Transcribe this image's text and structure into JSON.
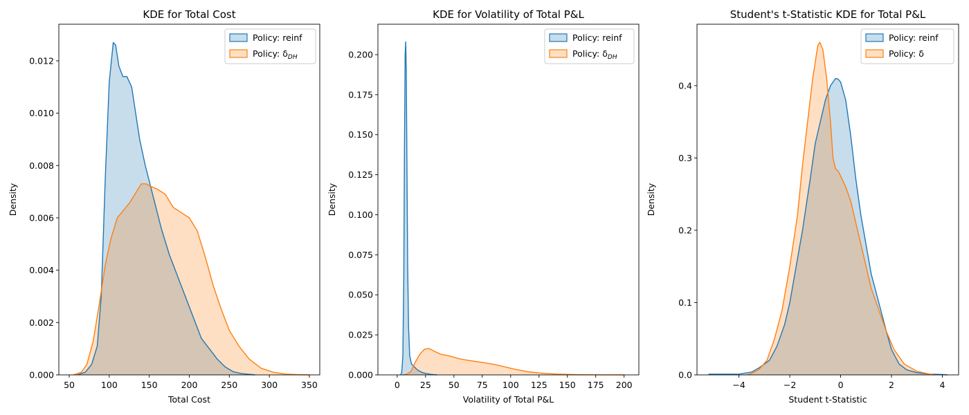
{
  "chart_data": [
    {
      "type": "area",
      "title": "KDE for Total Cost",
      "xlabel": "Total Cost",
      "ylabel": "Density",
      "xlim": [
        37,
        363
      ],
      "ylim": [
        0,
        0.0134
      ],
      "xticks": [
        50,
        100,
        150,
        200,
        250,
        300,
        350
      ],
      "yticks": [
        0.0,
        0.002,
        0.004,
        0.006,
        0.008,
        0.01,
        0.012
      ],
      "ytick_decimals": 3,
      "legend": "top-right",
      "series": [
        {
          "name": "Policy: reinf",
          "color": "#1f77b4",
          "x": [
            60,
            70,
            78,
            85,
            90,
            95,
            100,
            105,
            108,
            112,
            117,
            122,
            128,
            133,
            138,
            145,
            155,
            165,
            175,
            185,
            195,
            205,
            215,
            225,
            235,
            245,
            255,
            265,
            275,
            282
          ],
          "y": [
            0,
            0.0001,
            0.0004,
            0.0011,
            0.003,
            0.0075,
            0.0112,
            0.0127,
            0.0126,
            0.0118,
            0.0114,
            0.0114,
            0.011,
            0.01,
            0.009,
            0.008,
            0.0068,
            0.0056,
            0.0046,
            0.0038,
            0.003,
            0.0022,
            0.0014,
            0.001,
            0.0006,
            0.0003,
            0.00012,
            5e-05,
            2e-05,
            0
          ]
        },
        {
          "name": "Policy: δ",
          "name_sub": "DH",
          "color": "#ff7f0e",
          "x": [
            55,
            65,
            72,
            80,
            88,
            95,
            102,
            110,
            118,
            126,
            134,
            140,
            146,
            152,
            160,
            170,
            180,
            190,
            200,
            210,
            220,
            230,
            240,
            250,
            262,
            275,
            290,
            305,
            320,
            335,
            350
          ],
          "y": [
            0,
            0.0001,
            0.0004,
            0.0013,
            0.0028,
            0.0042,
            0.0052,
            0.006,
            0.0063,
            0.0066,
            0.007,
            0.0073,
            0.0073,
            0.0072,
            0.0071,
            0.0069,
            0.0064,
            0.0062,
            0.006,
            0.0055,
            0.0045,
            0.0034,
            0.0025,
            0.0017,
            0.0011,
            0.0006,
            0.00025,
            0.0001,
            3e-05,
            1e-05,
            0
          ]
        }
      ]
    },
    {
      "type": "area",
      "title": "KDE for Volatility of Total P&L",
      "xlabel": "Volatility of Total P&L",
      "ylabel": "Density",
      "xlim": [
        -17,
        213
      ],
      "ylim": [
        0,
        0.219
      ],
      "xticks": [
        0,
        25,
        50,
        75,
        100,
        125,
        150,
        175,
        200
      ],
      "yticks": [
        0.0,
        0.025,
        0.05,
        0.075,
        0.1,
        0.125,
        0.15,
        0.175,
        0.2
      ],
      "ytick_decimals": 3,
      "legend": "top-right",
      "series": [
        {
          "name": "Policy: reinf",
          "color": "#1f77b4",
          "x": [
            3,
            4,
            5,
            5.8,
            6.4,
            7,
            7.5,
            8,
            8.6,
            9.2,
            10,
            11,
            12.5,
            15,
            18,
            22,
            26,
            30,
            35
          ],
          "y": [
            0,
            0.0015,
            0.012,
            0.06,
            0.14,
            0.2,
            0.208,
            0.19,
            0.13,
            0.07,
            0.03,
            0.012,
            0.007,
            0.005,
            0.003,
            0.0015,
            0.0008,
            0.0003,
            0
          ]
        },
        {
          "name": "Policy: δ",
          "name_sub": "DH",
          "color": "#ff7f0e",
          "x": [
            5,
            8,
            12,
            16,
            20,
            24,
            28,
            32,
            38,
            45,
            55,
            65,
            75,
            85,
            95,
            105,
            115,
            125,
            140,
            160,
            180,
            200
          ],
          "y": [
            0,
            0.0003,
            0.002,
            0.008,
            0.013,
            0.016,
            0.0165,
            0.015,
            0.013,
            0.012,
            0.01,
            0.0088,
            0.0078,
            0.0066,
            0.005,
            0.0033,
            0.002,
            0.0012,
            0.0005,
            0.00015,
            4e-05,
            0
          ]
        }
      ]
    },
    {
      "type": "area",
      "title": "Student's t-Statistic KDE for Total P&L",
      "xlabel": "Student t-Statistic",
      "ylabel": "Density",
      "xlim": [
        -5.65,
        4.64
      ],
      "ylim": [
        0,
        0.485
      ],
      "xticks": [
        -4,
        -2,
        0,
        2,
        4
      ],
      "yticks": [
        0.0,
        0.1,
        0.2,
        0.3,
        0.4
      ],
      "ytick_decimals": 1,
      "legend": "top-right",
      "series": [
        {
          "name": "Policy: reinf",
          "color": "#1f77b4",
          "x": [
            -5.2,
            -4.5,
            -4.0,
            -3.5,
            -3.2,
            -2.8,
            -2.5,
            -2.2,
            -2.0,
            -1.8,
            -1.5,
            -1.2,
            -1.0,
            -0.8,
            -0.6,
            -0.4,
            -0.2,
            -0.1,
            0.0,
            0.2,
            0.4,
            0.6,
            0.8,
            1.0,
            1.2,
            1.5,
            1.8,
            2.0,
            2.3,
            2.6,
            3.0,
            3.5,
            4.0,
            4.2
          ],
          "y": [
            0.001,
            0.001,
            0.001,
            0.004,
            0.01,
            0.02,
            0.04,
            0.07,
            0.1,
            0.14,
            0.2,
            0.27,
            0.32,
            0.35,
            0.38,
            0.4,
            0.41,
            0.409,
            0.405,
            0.38,
            0.33,
            0.27,
            0.22,
            0.18,
            0.14,
            0.1,
            0.06,
            0.035,
            0.015,
            0.007,
            0.003,
            0.001,
            0.0005,
            0
          ]
        },
        {
          "name": "Policy: δ",
          "color": "#ff7f0e",
          "x": [
            -3.7,
            -3.5,
            -3.2,
            -2.9,
            -2.6,
            -2.3,
            -2.0,
            -1.7,
            -1.5,
            -1.3,
            -1.1,
            -0.9,
            -0.82,
            -0.7,
            -0.55,
            -0.4,
            -0.3,
            -0.2,
            -0.1,
            0.0,
            0.2,
            0.4,
            0.6,
            0.8,
            1.0,
            1.2,
            1.5,
            1.8,
            2.1,
            2.5,
            3.0,
            3.5,
            3.7
          ],
          "y": [
            0,
            0.002,
            0.008,
            0.02,
            0.05,
            0.09,
            0.15,
            0.22,
            0.29,
            0.35,
            0.41,
            0.455,
            0.46,
            0.45,
            0.41,
            0.35,
            0.3,
            0.285,
            0.282,
            0.275,
            0.26,
            0.24,
            0.21,
            0.18,
            0.15,
            0.12,
            0.09,
            0.06,
            0.035,
            0.015,
            0.005,
            0.001,
            0
          ]
        }
      ]
    }
  ]
}
